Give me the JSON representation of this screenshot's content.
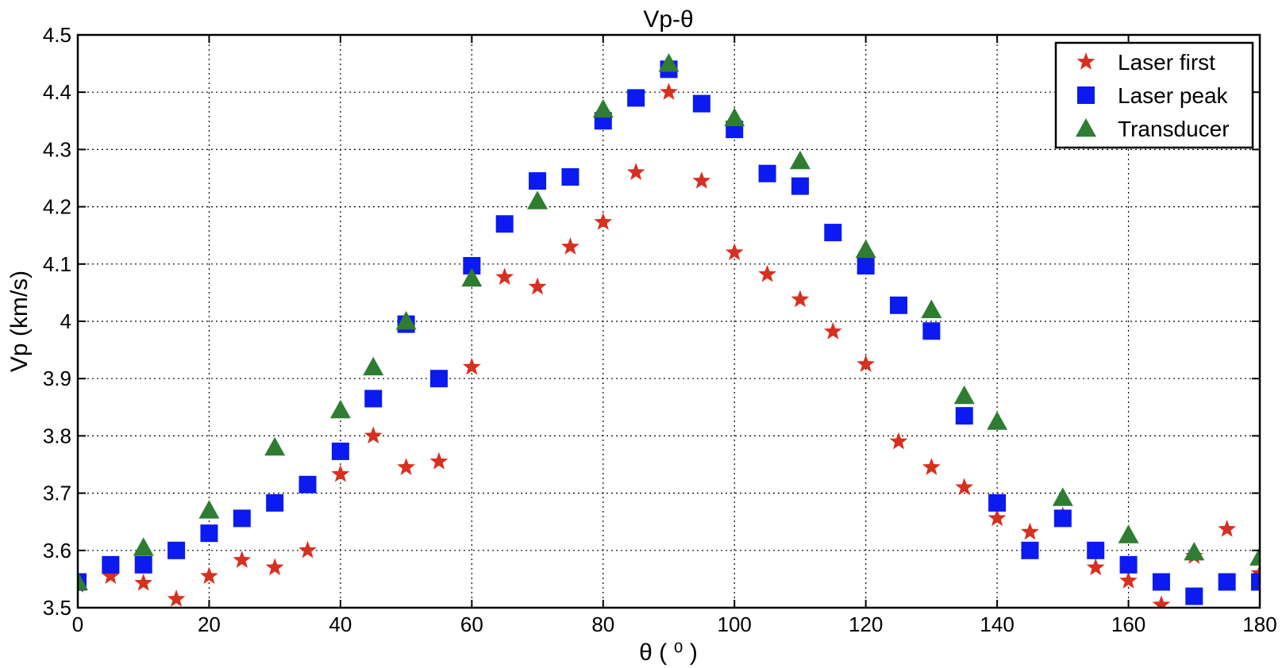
{
  "chart_data": {
    "type": "scatter",
    "title": "Vp-θ",
    "xlabel": "θ ( ⁰ )",
    "ylabel": "Vp (km/s)",
    "xlim": [
      0,
      180
    ],
    "ylim": [
      3.5,
      4.5
    ],
    "xticks": [
      0,
      20,
      40,
      60,
      80,
      100,
      120,
      140,
      160,
      180
    ],
    "yticks": [
      3.5,
      3.6,
      3.7,
      3.8,
      3.9,
      4,
      4.1,
      4.2,
      4.3,
      4.4,
      4.5
    ],
    "xtick_labels": [
      "0",
      "20",
      "40",
      "60",
      "80",
      "100",
      "120",
      "140",
      "160",
      "180"
    ],
    "ytick_labels": [
      "3.5",
      "3.6",
      "3.7",
      "3.8",
      "3.9",
      "4",
      "4.1",
      "4.2",
      "4.3",
      "4.4",
      "4.5"
    ],
    "grid": true,
    "legend_position": "top-right",
    "series": [
      {
        "name": "Laser first",
        "marker": "star",
        "color": "#d7301f",
        "x": [
          0,
          5,
          10,
          15,
          20,
          25,
          30,
          35,
          40,
          45,
          50,
          55,
          60,
          65,
          70,
          75,
          80,
          85,
          90,
          95,
          100,
          105,
          110,
          115,
          120,
          125,
          130,
          135,
          140,
          145,
          150,
          155,
          160,
          165,
          170,
          175,
          180
        ],
        "y": [
          3.54,
          3.555,
          3.543,
          3.515,
          3.555,
          3.583,
          3.57,
          3.6,
          3.733,
          3.8,
          3.745,
          3.755,
          3.92,
          4.077,
          4.06,
          4.13,
          4.173,
          4.26,
          4.4,
          4.245,
          4.12,
          4.082,
          4.038,
          3.982,
          3.925,
          3.79,
          3.745,
          3.71,
          3.656,
          3.632,
          3.66,
          3.57,
          3.547,
          3.505,
          3.59,
          3.637,
          3.56
        ]
      },
      {
        "name": "Laser peak",
        "marker": "square",
        "color": "#0a1af0",
        "x": [
          0,
          5,
          10,
          15,
          20,
          25,
          30,
          35,
          40,
          45,
          50,
          55,
          60,
          65,
          70,
          75,
          80,
          85,
          90,
          95,
          100,
          105,
          110,
          115,
          120,
          125,
          130,
          135,
          140,
          145,
          150,
          155,
          160,
          165,
          170,
          175,
          180
        ],
        "y": [
          3.545,
          3.575,
          3.575,
          3.6,
          3.63,
          3.656,
          3.683,
          3.715,
          3.773,
          3.865,
          3.995,
          3.9,
          4.097,
          4.17,
          4.245,
          4.252,
          4.35,
          4.39,
          4.44,
          4.38,
          4.335,
          4.258,
          4.236,
          4.155,
          4.097,
          4.028,
          3.983,
          3.835,
          3.683,
          3.6,
          3.656,
          3.6,
          3.575,
          3.545,
          3.52,
          3.545,
          3.545
        ]
      },
      {
        "name": "Transducer",
        "marker": "triangle",
        "color": "#2e7d32",
        "x": [
          0,
          10,
          20,
          30,
          40,
          45,
          50,
          60,
          70,
          80,
          90,
          100,
          110,
          120,
          130,
          135,
          140,
          150,
          160,
          170,
          180
        ],
        "y": [
          3.545,
          3.605,
          3.67,
          3.78,
          3.845,
          3.92,
          4.0,
          4.075,
          4.21,
          4.37,
          4.45,
          4.355,
          4.28,
          4.125,
          4.02,
          3.87,
          3.825,
          3.692,
          3.627,
          3.597,
          3.588
        ]
      }
    ]
  }
}
